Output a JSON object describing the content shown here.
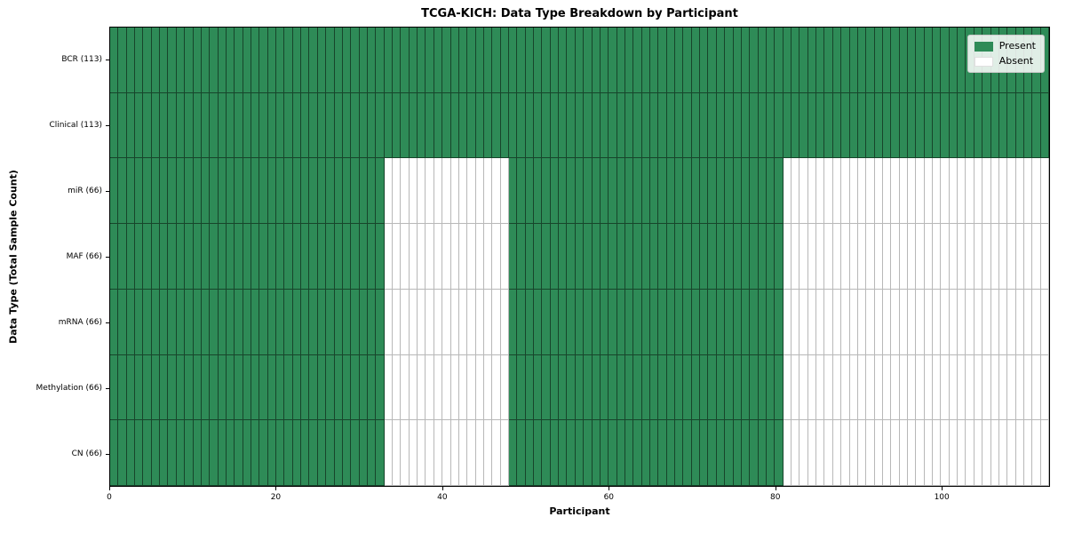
{
  "figure": {
    "title": "TCGA-KICH: Data Type Breakdown by Participant",
    "xlabel": "Participant",
    "ylabel": "Data Type (Total Sample Count)"
  },
  "legend": {
    "items": [
      {
        "label": "Present",
        "state": "present",
        "color": "#2e8b57"
      },
      {
        "label": "Absent",
        "state": "absent",
        "color": "#ffffff"
      }
    ],
    "position": "upper right"
  },
  "colors": {
    "present": "#2e8b57",
    "absent": "#ffffff",
    "frame": "#000000"
  },
  "chart_data": {
    "type": "heatmap",
    "title": "TCGA-KICH: Data Type Breakdown by Participant",
    "xlabel": "Participant",
    "ylabel": "Data Type (Total Sample Count)",
    "legend": [
      "Present",
      "Absent"
    ],
    "legend_position": "upper right",
    "grid": false,
    "xlim": [
      0,
      113
    ],
    "x_ticks": [
      0,
      20,
      40,
      60,
      80,
      100
    ],
    "n_participants": 113,
    "cell_states": {
      "present": 1,
      "absent": 0
    },
    "rows": [
      {
        "label": "BCR (113)",
        "data_type": "BCR",
        "total_samples": 113,
        "present_ranges": [
          [
            0,
            112
          ]
        ],
        "absent_ranges": []
      },
      {
        "label": "Clinical (113)",
        "data_type": "Clinical",
        "total_samples": 113,
        "present_ranges": [
          [
            0,
            112
          ]
        ],
        "absent_ranges": []
      },
      {
        "label": "miR (66)",
        "data_type": "miR",
        "total_samples": 66,
        "present_ranges": [
          [
            0,
            32
          ],
          [
            48,
            80
          ]
        ],
        "absent_ranges": [
          [
            33,
            47
          ],
          [
            81,
            112
          ]
        ]
      },
      {
        "label": "MAF (66)",
        "data_type": "MAF",
        "total_samples": 66,
        "present_ranges": [
          [
            0,
            32
          ],
          [
            48,
            80
          ]
        ],
        "absent_ranges": [
          [
            33,
            47
          ],
          [
            81,
            112
          ]
        ]
      },
      {
        "label": "mRNA (66)",
        "data_type": "mRNA",
        "total_samples": 66,
        "present_ranges": [
          [
            0,
            32
          ],
          [
            48,
            80
          ]
        ],
        "absent_ranges": [
          [
            33,
            47
          ],
          [
            81,
            112
          ]
        ]
      },
      {
        "label": "Methylation (66)",
        "data_type": "Methylation",
        "total_samples": 66,
        "present_ranges": [
          [
            0,
            32
          ],
          [
            48,
            80
          ]
        ],
        "absent_ranges": [
          [
            33,
            47
          ],
          [
            81,
            112
          ]
        ]
      },
      {
        "label": "CN (66)",
        "data_type": "CN",
        "total_samples": 66,
        "present_ranges": [
          [
            0,
            32
          ],
          [
            48,
            80
          ]
        ],
        "absent_ranges": [
          [
            33,
            47
          ],
          [
            81,
            112
          ]
        ]
      }
    ]
  }
}
